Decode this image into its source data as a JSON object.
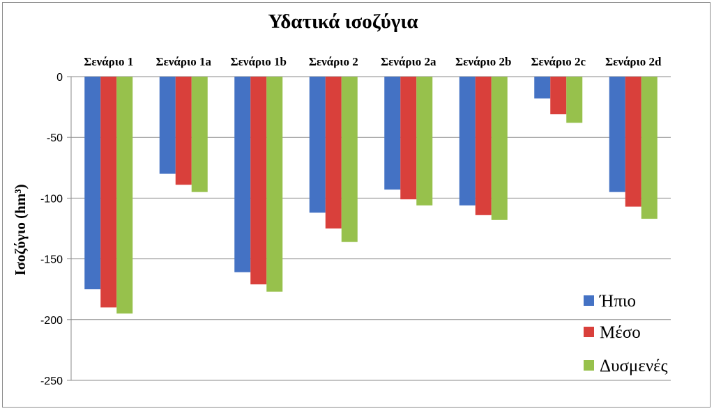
{
  "chart_data": {
    "type": "bar",
    "title": "Υδατικά ισοζύγια",
    "ylabel": "Ισοζύγιο (hm³)",
    "xlabel": "",
    "categories": [
      "Σενάριο 1",
      "Σενάριο 1a",
      "Σενάριο 1b",
      "Σενάριο 2",
      "Σενάριο 2a",
      "Σενάριο 2b",
      "Σενάριο 2c",
      "Σενάριο 2d"
    ],
    "series": [
      {
        "name": "Ήπιο",
        "color": "#4472c4",
        "values": [
          -175,
          -80,
          -161,
          -112,
          -93,
          -106,
          -18,
          -95
        ]
      },
      {
        "name": "Μέσο",
        "color": "#d9403b",
        "values": [
          -190,
          -89,
          -171,
          -125,
          -101,
          -114,
          -31,
          -107
        ]
      },
      {
        "name": "Δυσμενές",
        "color": "#97c14c",
        "values": [
          -195,
          -95,
          -177,
          -136,
          -106,
          -118,
          -38,
          -117
        ]
      }
    ],
    "ylim": [
      -250,
      0
    ],
    "yticks": [
      0,
      -50,
      -100,
      -150,
      -200,
      -250
    ],
    "grid": true,
    "category_labels_position": "top",
    "legend_position": "bottom-right"
  }
}
